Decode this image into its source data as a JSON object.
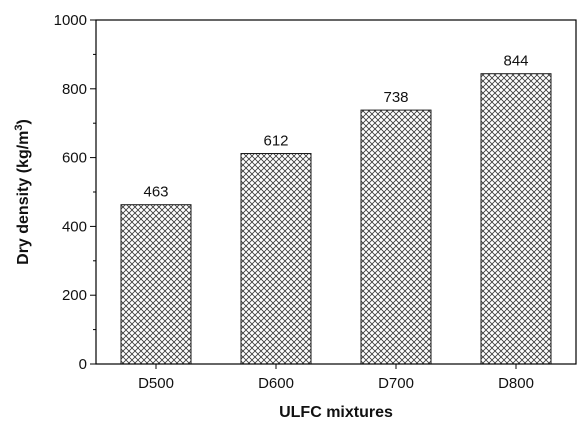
{
  "chart_data": {
    "type": "bar",
    "categories": [
      "D500",
      "D600",
      "D700",
      "D800"
    ],
    "values": [
      463,
      612,
      738,
      844
    ],
    "data_labels": [
      "463",
      "612",
      "738",
      "844"
    ],
    "xlabel": "ULFC mixtures",
    "ylabel": "Dry density (kg/m",
    "ylabel_superscript": "3",
    "ylabel_suffix": ")",
    "ylim": [
      0,
      1000
    ],
    "yticks": [
      0,
      200,
      400,
      600,
      800,
      1000
    ],
    "ytick_labels": [
      "0",
      "200",
      "400",
      "600",
      "800",
      "1000"
    ],
    "grid": false,
    "bar_fill": "crosshatch",
    "colors": {
      "bar_stroke": "#1a1a1a",
      "hatch": "#3a3a3a",
      "axis": "#000000"
    }
  }
}
